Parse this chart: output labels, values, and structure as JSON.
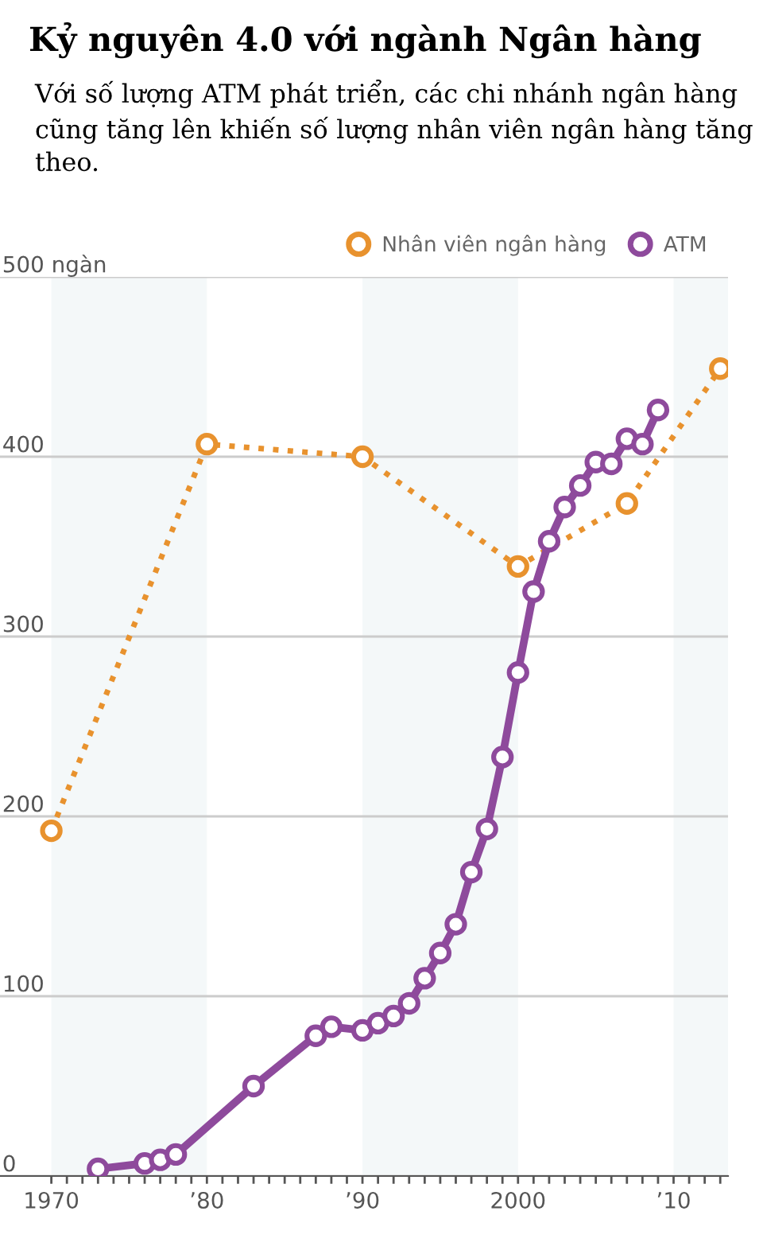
{
  "chart_data": {
    "type": "line",
    "title": "Kỷ nguyên 4.0 với ngành Ngân hàng",
    "subtitle": "Với số lượng ATM phát triển, các chi nhánh ngân hàng cũng tăng lên khiến số lượng nhân viên ngân hàng tăng theo.",
    "series": [
      {
        "name": "Nhân viên ngân hàng",
        "color": "#e8922e",
        "line_style": "dotted",
        "x": [
          1970,
          1980,
          1990,
          2000,
          2007,
          2013
        ],
        "values": [
          192,
          407,
          400,
          339,
          374,
          449
        ]
      },
      {
        "name": "ATM",
        "color": "#8e4a9c",
        "line_style": "solid",
        "x": [
          1973,
          1976,
          1977,
          1978,
          1983,
          1987,
          1988,
          1990,
          1991,
          1992,
          1993,
          1994,
          1995,
          1996,
          1997,
          1998,
          1999,
          2000,
          2001,
          2002,
          2003,
          2004,
          2005,
          2006,
          2007,
          2008,
          2009
        ],
        "values": [
          4,
          7,
          9,
          12,
          50,
          78,
          83,
          81,
          85,
          89,
          96,
          110,
          124,
          140,
          169,
          193,
          233,
          280,
          325,
          353,
          372,
          384,
          397,
          396,
          410,
          407,
          426
        ]
      }
    ],
    "marker": "circle",
    "legend": "top right",
    "grid": "y",
    "xlim": [
      1966.7,
      2013.5
    ],
    "ylim": [
      0,
      500
    ],
    "yticks": [
      0,
      100,
      200,
      300,
      400,
      {
        "value": 500,
        "label": "500 ngàn"
      }
    ],
    "xticks": [
      1970,
      {
        "value": 1971,
        "label": null
      },
      {
        "value": 1972,
        "label": null
      },
      {
        "value": 1973,
        "label": null
      },
      {
        "value": 1974,
        "label": null
      },
      {
        "value": 1975,
        "label": null
      },
      {
        "value": 1976,
        "label": null
      },
      {
        "value": 1977,
        "label": null
      },
      {
        "value": 1978,
        "label": null
      },
      {
        "value": 1979,
        "label": null
      },
      {
        "value": 1980,
        "label": "’80"
      },
      {
        "value": 1981,
        "label": null
      },
      {
        "value": 1982,
        "label": null
      },
      {
        "value": 1983,
        "label": null
      },
      {
        "value": 1984,
        "label": null
      },
      {
        "value": 1985,
        "label": null
      },
      {
        "value": 1986,
        "label": null
      },
      {
        "value": 1987,
        "label": null
      },
      {
        "value": 1988,
        "label": null
      },
      {
        "value": 1989,
        "label": null
      },
      {
        "value": 1990,
        "label": "’90"
      },
      {
        "value": 1991,
        "label": null
      },
      {
        "value": 1992,
        "label": null
      },
      {
        "value": 1993,
        "label": null
      },
      {
        "value": 1994,
        "label": null
      },
      {
        "value": 1995,
        "label": null
      },
      {
        "value": 1996,
        "label": null
      },
      {
        "value": 1997,
        "label": null
      },
      {
        "value": 1998,
        "label": null
      },
      {
        "value": 1999,
        "label": null
      },
      2000,
      {
        "value": 2001,
        "label": null
      },
      {
        "value": 2002,
        "label": null
      },
      {
        "value": 2003,
        "label": null
      },
      {
        "value": 2004,
        "label": null
      },
      {
        "value": 2005,
        "label": null
      },
      {
        "value": 2006,
        "label": null
      },
      {
        "value": 2007,
        "label": null
      },
      {
        "value": 2008,
        "label": null
      },
      {
        "value": 2009,
        "label": null
      },
      {
        "value": 2010,
        "label": "’10"
      },
      {
        "value": 2011,
        "label": null
      },
      {
        "value": 2012,
        "label": null
      },
      {
        "value": 2013,
        "label": null
      }
    ],
    "bands": [
      {
        "axis": "x",
        "from": 1970,
        "to": 1980,
        "color": "#f4f8f9"
      },
      {
        "axis": "x",
        "from": 1990,
        "to": 2000,
        "color": "#f4f8f9"
      },
      {
        "axis": "x",
        "from": 2010,
        "to": 2013.5,
        "color": "#f4f8f9"
      }
    ]
  }
}
